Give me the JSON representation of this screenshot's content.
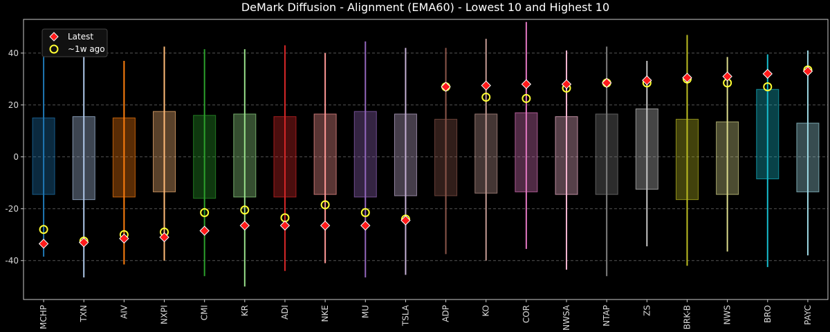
{
  "chart_data": {
    "type": "box",
    "title": "DeMark Diffusion - Alignment (EMA60) - Lowest 10 and Highest 10",
    "xlabel": "",
    "ylabel": "",
    "ylim": [
      -55,
      53
    ],
    "yticks": [
      -40,
      -20,
      0,
      20,
      40
    ],
    "grid": true,
    "legend_position": "top-left",
    "legend": [
      {
        "name": "Latest",
        "marker": "diamond",
        "color": "#ff1a1a"
      },
      {
        "name": "~1w ago",
        "marker": "circle",
        "color": "#ffff33"
      }
    ],
    "categories": [
      "MCHP",
      "TXN",
      "AIV",
      "NXPI",
      "CMI",
      "KR",
      "ADI",
      "NKE",
      "MU",
      "TSLA",
      "ADP",
      "KO",
      "COR",
      "NWSA",
      "NTAP",
      "ZS",
      "BRK-B",
      "NWS",
      "BRO",
      "PAYC"
    ],
    "colors": [
      "#1f77b4",
      "#aec7e8",
      "#ff7f0e",
      "#ffbb78",
      "#2ca02c",
      "#98df8a",
      "#d62728",
      "#ff9896",
      "#9467bd",
      "#c5b0d5",
      "#8c564b",
      "#c49c94",
      "#e377c2",
      "#f7b6d2",
      "#7f7f7f",
      "#c7c7c7",
      "#bcbd22",
      "#dbdb8d",
      "#17becf",
      "#9edae5"
    ],
    "min": [
      -38.5,
      -46.5,
      -41.5,
      -40,
      -46,
      -50,
      -44,
      -41,
      -46.5,
      -45.5,
      -37.5,
      -40,
      -35.5,
      -43.5,
      -46,
      -34.5,
      -42,
      -36.5,
      -42.5,
      -38
    ],
    "max": [
      38.5,
      42,
      37,
      42.5,
      41.5,
      41.5,
      43,
      40,
      44.5,
      42,
      42,
      45.5,
      52,
      41,
      42.5,
      37,
      47,
      38.5,
      39.5,
      41
    ],
    "q1": [
      -14.5,
      -16.5,
      -15.5,
      -13.5,
      -16,
      -15.5,
      -15.5,
      -14.5,
      -15.5,
      -15,
      -15,
      -14,
      -13.5,
      -14.5,
      -14.5,
      -12.5,
      -16.5,
      -14.5,
      -8.5,
      -13.5
    ],
    "q3": [
      15,
      15.5,
      15,
      17.5,
      16,
      16.5,
      15.5,
      16.5,
      17.5,
      16.5,
      14.5,
      16.5,
      17,
      15.5,
      16.5,
      18.5,
      14.5,
      13.5,
      26,
      13
    ],
    "latest": [
      -33.5,
      -33,
      -31.5,
      -31,
      -28.5,
      -26.5,
      -26.5,
      -26.5,
      -26.5,
      -24.5,
      27,
      27.5,
      28,
      28,
      28.5,
      29.5,
      30.5,
      31,
      32,
      33
    ],
    "week_ago": [
      -28,
      -32.5,
      -30,
      -29,
      -21.5,
      -20.5,
      -23.5,
      -18.5,
      -21.5,
      -24,
      27,
      23,
      22.5,
      26.5,
      28.5,
      28.5,
      30,
      28.5,
      27,
      33.5
    ]
  }
}
